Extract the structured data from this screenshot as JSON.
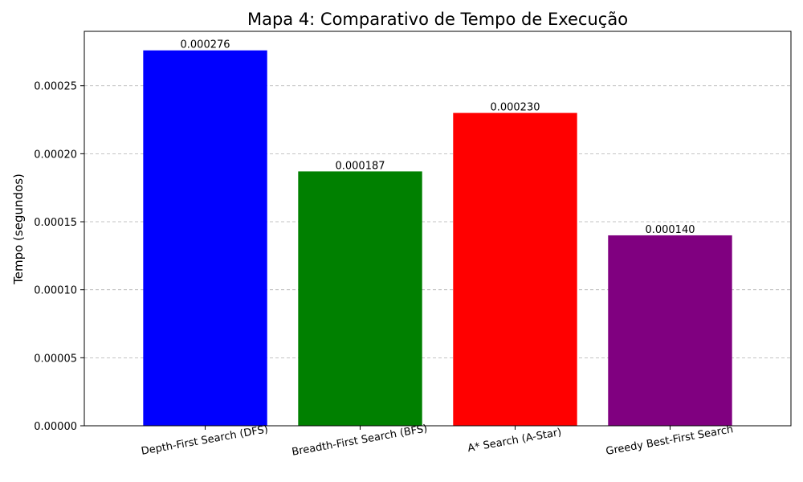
{
  "chart_data": {
    "type": "bar",
    "title": "Mapa 4: Comparativo de Tempo de Execução",
    "xlabel": "",
    "ylabel": "Tempo (segundos)",
    "categories": [
      "Depth-First Search (DFS)",
      "Breadth-First Search (BFS)",
      "A* Search (A-Star)",
      "Greedy Best-First Search"
    ],
    "values": [
      0.000276,
      0.000187,
      0.00023,
      0.00014
    ],
    "data_labels": [
      "0.000276",
      "0.000187",
      "0.000230",
      "0.000140"
    ],
    "colors": [
      "#0000ff",
      "#008000",
      "#ff0000",
      "#800080"
    ],
    "ylim": [
      0,
      0.00029
    ],
    "yticks": [
      0,
      5e-05,
      0.0001,
      0.00015,
      0.0002,
      0.00025
    ],
    "ytick_labels": [
      "0.00000",
      "0.00005",
      "0.00010",
      "0.00015",
      "0.00020",
      "0.00025"
    ],
    "grid": "y-dashed",
    "legend": "none"
  }
}
